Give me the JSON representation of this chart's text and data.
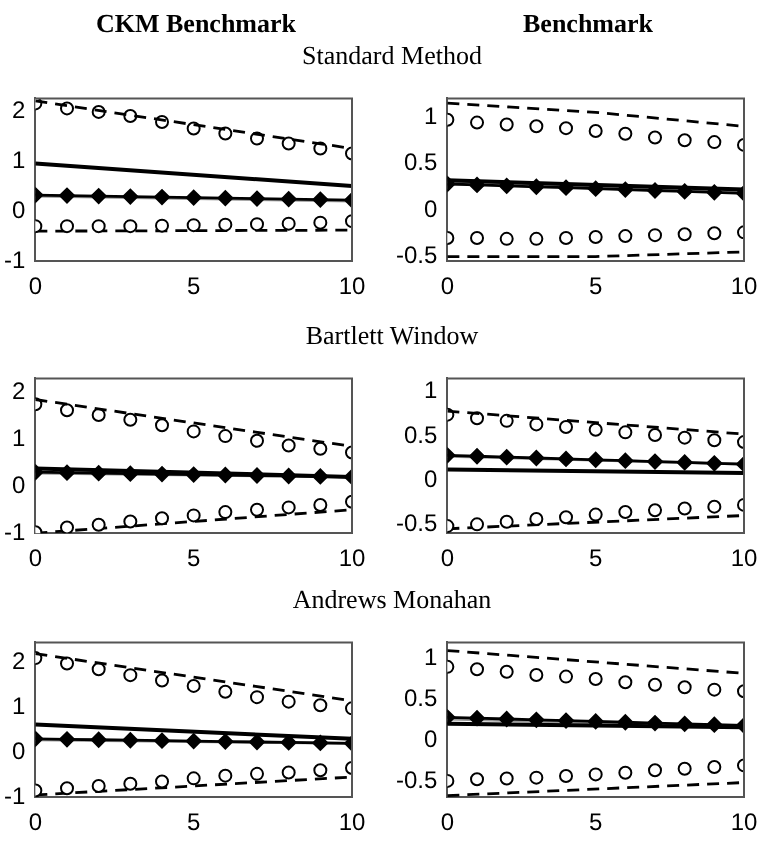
{
  "chart_data": [
    {
      "type": "line",
      "title": "CKM Benchmark",
      "subtitle": "Standard Method",
      "xlim": [
        0,
        10
      ],
      "xticks": [
        0,
        5,
        10
      ],
      "ylim": [
        -1,
        2.25
      ],
      "yticks": [
        -1,
        0,
        1,
        2
      ],
      "grid": false,
      "legend": false,
      "series": [
        {
          "type": "line",
          "color": "#000000",
          "line_style": "dashed",
          "x": [
            0,
            10
          ],
          "values": [
            2.2,
            1.25
          ]
        },
        {
          "type": "scatter",
          "color": "#000000",
          "marker": "circle",
          "x": [
            0,
            1,
            2,
            3,
            4,
            5,
            6,
            7,
            8,
            9,
            10
          ],
          "values": [
            2.15,
            2.05,
            1.98,
            1.9,
            1.78,
            1.65,
            1.55,
            1.45,
            1.35,
            1.25,
            1.15
          ]
        },
        {
          "type": "line",
          "color": "#000000",
          "line_style": "solid",
          "x": [
            0,
            10
          ],
          "values": [
            0.95,
            0.5
          ]
        },
        {
          "type": "line",
          "color": "#999999",
          "line_style": "solid",
          "x": [
            0,
            10
          ],
          "values": [
            0.3,
            0.2
          ]
        },
        {
          "type": "line",
          "color": "#000000",
          "marker": "diamond",
          "x": [
            0,
            1,
            2,
            3,
            4,
            5,
            6,
            7,
            8,
            9,
            10
          ],
          "values": [
            0.32,
            0.31,
            0.3,
            0.29,
            0.28,
            0.27,
            0.26,
            0.25,
            0.24,
            0.23,
            0.22
          ]
        },
        {
          "type": "scatter",
          "color": "#000000",
          "marker": "circle",
          "x": [
            0,
            1,
            2,
            3,
            4,
            5,
            6,
            7,
            8,
            9,
            10
          ],
          "values": [
            -0.3,
            -0.3,
            -0.3,
            -0.3,
            -0.29,
            -0.28,
            -0.27,
            -0.26,
            -0.25,
            -0.23,
            -0.2
          ]
        },
        {
          "type": "line",
          "color": "#000000",
          "line_style": "dashed",
          "x": [
            0,
            10
          ],
          "values": [
            -0.4,
            -0.38
          ]
        }
      ]
    },
    {
      "type": "line",
      "title": "Benchmark",
      "xlim": [
        0,
        10
      ],
      "xticks": [
        0,
        5,
        10
      ],
      "ylim": [
        -0.55,
        1.2
      ],
      "yticks": [
        -0.5,
        0,
        0.5,
        1
      ],
      "grid": false,
      "legend": false,
      "series": [
        {
          "type": "line",
          "color": "#000000",
          "line_style": "dashed",
          "x": [
            0,
            5,
            10
          ],
          "values": [
            1.15,
            1.05,
            0.9
          ]
        },
        {
          "type": "scatter",
          "color": "#000000",
          "marker": "circle",
          "x": [
            0,
            1,
            2,
            3,
            4,
            5,
            6,
            7,
            8,
            9,
            10
          ],
          "values": [
            0.97,
            0.94,
            0.92,
            0.9,
            0.88,
            0.85,
            0.82,
            0.78,
            0.75,
            0.73,
            0.7
          ]
        },
        {
          "type": "line",
          "color": "#000000",
          "line_style": "solid",
          "x": [
            0,
            10
          ],
          "values": [
            0.32,
            0.22
          ]
        },
        {
          "type": "line",
          "color": "#999999",
          "line_style": "solid",
          "x": [
            0,
            10
          ],
          "values": [
            0.3,
            0.2
          ]
        },
        {
          "type": "line",
          "color": "#000000",
          "marker": "diamond",
          "x": [
            0,
            1,
            2,
            3,
            4,
            5,
            6,
            7,
            8,
            9,
            10
          ],
          "values": [
            0.28,
            0.27,
            0.26,
            0.25,
            0.24,
            0.23,
            0.22,
            0.21,
            0.2,
            0.19,
            0.18
          ]
        },
        {
          "type": "scatter",
          "color": "#000000",
          "marker": "circle",
          "x": [
            0,
            1,
            2,
            3,
            4,
            5,
            6,
            7,
            8,
            9,
            10
          ],
          "values": [
            -0.3,
            -0.3,
            -0.31,
            -0.31,
            -0.3,
            -0.29,
            -0.28,
            -0.27,
            -0.26,
            -0.25,
            -0.24
          ]
        },
        {
          "type": "line",
          "color": "#000000",
          "line_style": "dashed",
          "x": [
            0,
            5,
            10
          ],
          "values": [
            -0.5,
            -0.5,
            -0.45
          ]
        }
      ]
    },
    {
      "type": "line",
      "subtitle": "Bartlett Window",
      "xlim": [
        0,
        10
      ],
      "xticks": [
        0,
        5,
        10
      ],
      "ylim": [
        -1,
        2.3
      ],
      "yticks": [
        -1,
        0,
        1,
        2
      ],
      "grid": false,
      "legend": false,
      "series": [
        {
          "type": "line",
          "color": "#000000",
          "line_style": "dashed",
          "x": [
            0,
            10
          ],
          "values": [
            1.85,
            0.85
          ]
        },
        {
          "type": "scatter",
          "color": "#000000",
          "marker": "circle",
          "x": [
            0,
            1,
            2,
            3,
            4,
            5,
            6,
            7,
            8,
            9,
            10
          ],
          "values": [
            1.75,
            1.62,
            1.52,
            1.42,
            1.3,
            1.17,
            1.07,
            0.97,
            0.87,
            0.8,
            0.72
          ]
        },
        {
          "type": "line",
          "color": "#000000",
          "line_style": "solid",
          "x": [
            0,
            10
          ],
          "values": [
            0.38,
            0.2
          ]
        },
        {
          "type": "line",
          "color": "#999999",
          "line_style": "solid",
          "x": [
            0,
            10
          ],
          "values": [
            0.28,
            0.2
          ]
        },
        {
          "type": "line",
          "color": "#000000",
          "marker": "diamond",
          "x": [
            0,
            1,
            2,
            3,
            4,
            5,
            6,
            7,
            8,
            9,
            10
          ],
          "values": [
            0.3,
            0.29,
            0.28,
            0.27,
            0.26,
            0.25,
            0.24,
            0.23,
            0.22,
            0.21,
            0.2
          ]
        },
        {
          "type": "scatter",
          "color": "#000000",
          "marker": "circle",
          "x": [
            0,
            1,
            2,
            3,
            4,
            5,
            6,
            7,
            8,
            9,
            10
          ],
          "values": [
            -0.98,
            -0.88,
            -0.82,
            -0.75,
            -0.68,
            -0.62,
            -0.55,
            -0.5,
            -0.45,
            -0.4,
            -0.33
          ]
        },
        {
          "type": "line",
          "color": "#000000",
          "line_style": "dashed",
          "x": [
            0,
            10
          ],
          "values": [
            -1.0,
            -0.5
          ]
        }
      ]
    },
    {
      "type": "line",
      "xlim": [
        0,
        10
      ],
      "xticks": [
        0,
        5,
        10
      ],
      "ylim": [
        -0.6,
        1.15
      ],
      "yticks": [
        -0.5,
        0,
        0.5,
        1
      ],
      "grid": false,
      "legend": false,
      "series": [
        {
          "type": "line",
          "color": "#000000",
          "line_style": "dashed",
          "x": [
            0,
            10
          ],
          "values": [
            0.78,
            0.52
          ]
        },
        {
          "type": "scatter",
          "color": "#000000",
          "marker": "circle",
          "x": [
            0,
            1,
            2,
            3,
            4,
            5,
            6,
            7,
            8,
            9,
            10
          ],
          "values": [
            0.74,
            0.7,
            0.67,
            0.63,
            0.6,
            0.57,
            0.54,
            0.51,
            0.48,
            0.45,
            0.43
          ]
        },
        {
          "type": "line",
          "color": "#000000",
          "line_style": "solid",
          "x": [
            0,
            10
          ],
          "values": [
            0.12,
            0.08
          ]
        },
        {
          "type": "line",
          "color": "#999999",
          "line_style": "solid",
          "x": [
            0,
            10
          ],
          "values": [
            0.27,
            0.18
          ]
        },
        {
          "type": "line",
          "color": "#000000",
          "marker": "diamond",
          "x": [
            0,
            1,
            2,
            3,
            4,
            5,
            6,
            7,
            8,
            9,
            10
          ],
          "values": [
            0.28,
            0.27,
            0.26,
            0.25,
            0.24,
            0.23,
            0.22,
            0.21,
            0.2,
            0.19,
            0.18
          ]
        },
        {
          "type": "scatter",
          "color": "#000000",
          "marker": "circle",
          "x": [
            0,
            1,
            2,
            3,
            4,
            5,
            6,
            7,
            8,
            9,
            10
          ],
          "values": [
            -0.52,
            -0.5,
            -0.47,
            -0.44,
            -0.42,
            -0.39,
            -0.36,
            -0.34,
            -0.32,
            -0.3,
            -0.28
          ]
        },
        {
          "type": "line",
          "color": "#000000",
          "line_style": "dashed",
          "x": [
            0,
            10
          ],
          "values": [
            -0.55,
            -0.4
          ]
        }
      ]
    },
    {
      "type": "line",
      "subtitle": "Andrews Monahan",
      "xlim": [
        0,
        10
      ],
      "xticks": [
        0,
        5,
        10
      ],
      "ylim": [
        -1,
        2.45
      ],
      "yticks": [
        -1,
        0,
        1,
        2
      ],
      "grid": false,
      "legend": false,
      "series": [
        {
          "type": "line",
          "color": "#000000",
          "line_style": "dashed",
          "x": [
            0,
            10
          ],
          "values": [
            2.2,
            1.15
          ]
        },
        {
          "type": "scatter",
          "color": "#000000",
          "marker": "circle",
          "x": [
            0,
            1,
            2,
            3,
            4,
            5,
            6,
            7,
            8,
            9,
            10
          ],
          "values": [
            2.1,
            1.98,
            1.85,
            1.72,
            1.6,
            1.48,
            1.35,
            1.23,
            1.13,
            1.05,
            0.98
          ]
        },
        {
          "type": "line",
          "color": "#000000",
          "line_style": "solid",
          "x": [
            0,
            10
          ],
          "values": [
            0.62,
            0.3
          ]
        },
        {
          "type": "line",
          "color": "#999999",
          "line_style": "solid",
          "x": [
            0,
            10
          ],
          "values": [
            0.28,
            0.2
          ]
        },
        {
          "type": "line",
          "color": "#000000",
          "marker": "diamond",
          "x": [
            0,
            1,
            2,
            3,
            4,
            5,
            6,
            7,
            8,
            9,
            10
          ],
          "values": [
            0.3,
            0.29,
            0.28,
            0.27,
            0.26,
            0.25,
            0.24,
            0.23,
            0.22,
            0.21,
            0.2
          ]
        },
        {
          "type": "scatter",
          "color": "#000000",
          "marker": "circle",
          "x": [
            0,
            1,
            2,
            3,
            4,
            5,
            6,
            7,
            8,
            9,
            10
          ],
          "values": [
            -0.85,
            -0.8,
            -0.75,
            -0.7,
            -0.65,
            -0.58,
            -0.52,
            -0.48,
            -0.45,
            -0.4,
            -0.35
          ]
        },
        {
          "type": "line",
          "color": "#000000",
          "line_style": "dashed",
          "x": [
            0,
            10
          ],
          "values": [
            -0.95,
            -0.55
          ]
        }
      ]
    },
    {
      "type": "line",
      "xlim": [
        0,
        10
      ],
      "xticks": [
        0,
        5,
        10
      ],
      "ylim": [
        -0.7,
        1.2
      ],
      "yticks": [
        -0.5,
        0,
        0.5,
        1
      ],
      "grid": false,
      "legend": false,
      "series": [
        {
          "type": "line",
          "color": "#000000",
          "line_style": "dashed",
          "x": [
            0,
            10
          ],
          "values": [
            1.1,
            0.82
          ]
        },
        {
          "type": "scatter",
          "color": "#000000",
          "marker": "circle",
          "x": [
            0,
            1,
            2,
            3,
            4,
            5,
            6,
            7,
            8,
            9,
            10
          ],
          "values": [
            0.9,
            0.87,
            0.84,
            0.8,
            0.78,
            0.75,
            0.71,
            0.68,
            0.65,
            0.62,
            0.6
          ]
        },
        {
          "type": "line",
          "color": "#000000",
          "line_style": "solid",
          "x": [
            0,
            10
          ],
          "values": [
            0.2,
            0.16
          ]
        },
        {
          "type": "line",
          "color": "#999999",
          "line_style": "solid",
          "x": [
            0,
            10
          ],
          "values": [
            0.26,
            0.17
          ]
        },
        {
          "type": "line",
          "color": "#000000",
          "marker": "diamond",
          "x": [
            0,
            1,
            2,
            3,
            4,
            5,
            6,
            7,
            8,
            9,
            10
          ],
          "values": [
            0.28,
            0.27,
            0.26,
            0.25,
            0.24,
            0.23,
            0.22,
            0.21,
            0.2,
            0.19,
            0.18
          ]
        },
        {
          "type": "scatter",
          "color": "#000000",
          "marker": "circle",
          "x": [
            0,
            1,
            2,
            3,
            4,
            5,
            6,
            7,
            8,
            9,
            10
          ],
          "values": [
            -0.5,
            -0.48,
            -0.47,
            -0.46,
            -0.44,
            -0.42,
            -0.4,
            -0.37,
            -0.35,
            -0.33,
            -0.31
          ]
        },
        {
          "type": "line",
          "color": "#000000",
          "line_style": "dashed",
          "x": [
            0,
            10
          ],
          "values": [
            -0.68,
            -0.52
          ]
        }
      ]
    }
  ]
}
